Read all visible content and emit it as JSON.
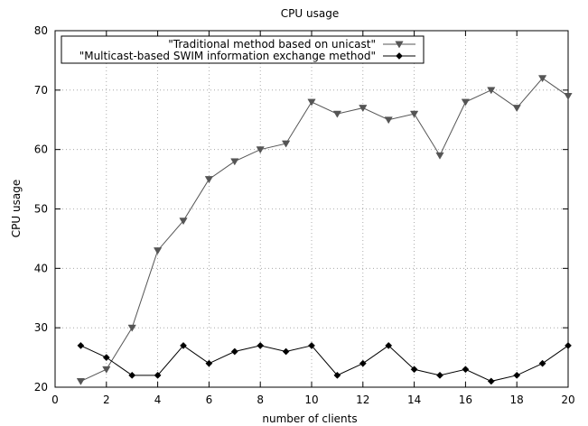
{
  "chart_data": {
    "type": "line",
    "title": "CPU usage",
    "xlabel": "number of clients",
    "ylabel": "CPU usage",
    "xlim": [
      0,
      20
    ],
    "ylim": [
      20,
      80
    ],
    "xticks": [
      0,
      2,
      4,
      6,
      8,
      10,
      12,
      14,
      16,
      18,
      20
    ],
    "yticks": [
      20,
      30,
      40,
      50,
      60,
      70,
      80
    ],
    "grid": "dotted",
    "legend_position": "top-left",
    "x": [
      1,
      2,
      3,
      4,
      5,
      6,
      7,
      8,
      9,
      10,
      11,
      12,
      13,
      14,
      15,
      16,
      17,
      18,
      19,
      20
    ],
    "series": [
      {
        "name": "\"Traditional method based on unicast\"",
        "marker": "triangle-down",
        "color": "#555555",
        "values": [
          21,
          23,
          30,
          43,
          48,
          55,
          58,
          60,
          61,
          68,
          66,
          67,
          65,
          66,
          59,
          68,
          70,
          67,
          72,
          69
        ]
      },
      {
        "name": "\"Multicast-based SWIM information exchange method\"",
        "marker": "diamond",
        "color": "#000000",
        "values": [
          27,
          25,
          22,
          22,
          27,
          24,
          26,
          27,
          26,
          27,
          22,
          24,
          27,
          23,
          22,
          23,
          21,
          22,
          24,
          27
        ]
      }
    ]
  }
}
